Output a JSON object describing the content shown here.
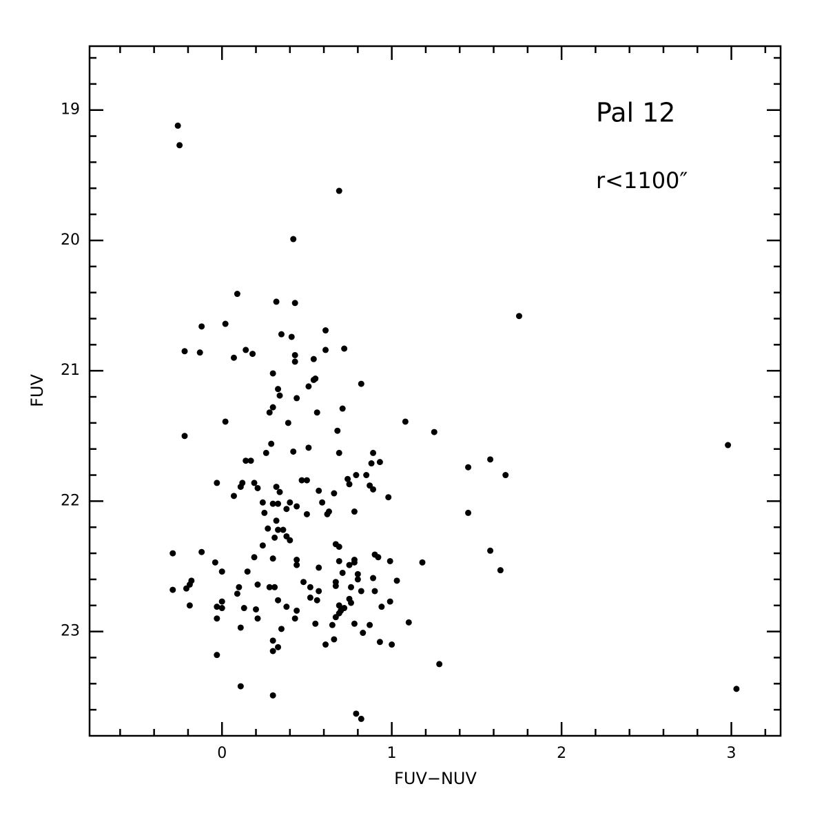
{
  "chart_data": {
    "type": "scatter",
    "title": "Pal 12",
    "annotation": "r<1100″",
    "x_label": "FUV−NUV",
    "y_label": "FUV",
    "color": "#000000",
    "y_inverted": true,
    "xlim": [
      -0.78,
      3.29
    ],
    "ylim": [
      18.51,
      23.8
    ],
    "xticks": [
      0,
      1,
      2,
      3
    ],
    "xminorticks": [
      -0.6,
      -0.4,
      -0.2,
      0.2,
      0.4,
      0.6,
      0.8,
      1.2,
      1.4,
      1.6,
      1.8,
      2.2,
      2.4,
      2.6,
      2.8,
      3.2
    ],
    "yticks": [
      19,
      20,
      21,
      22,
      23
    ],
    "yminorticks": [
      18.6,
      18.8,
      19.2,
      19.4,
      19.6,
      19.8,
      20.2,
      20.4,
      20.6,
      20.8,
      21.2,
      21.4,
      21.6,
      21.8,
      22.2,
      22.4,
      22.6,
      22.8,
      23.2,
      23.4,
      23.6
    ],
    "x": [
      -0.26,
      -0.25,
      0.69,
      0.42,
      1.75,
      0.09,
      0.32,
      0.43,
      -0.12,
      0.02,
      0.61,
      0.35,
      0.41,
      -0.22,
      -0.13,
      0.14,
      0.18,
      0.07,
      0.43,
      0.43,
      0.54,
      0.61,
      0.72,
      0.3,
      0.55,
      0.54,
      0.51,
      0.82,
      0.33,
      0.34,
      0.44,
      0.3,
      0.28,
      0.71,
      0.56,
      0.02,
      1.08,
      0.39,
      -0.22,
      1.25,
      0.68,
      0.29,
      2.98,
      0.51,
      0.26,
      0.42,
      0.69,
      0.89,
      0.14,
      0.17,
      0.93,
      1.58,
      0.88,
      1.45,
      1.67,
      0.74,
      0.79,
      0.85,
      0.47,
      0.5,
      -0.03,
      0.12,
      0.19,
      0.75,
      0.87,
      0.11,
      0.21,
      0.32,
      0.89,
      0.34,
      0.57,
      0.66,
      0.07,
      0.98,
      0.24,
      0.3,
      0.33,
      0.4,
      0.44,
      0.59,
      0.25,
      0.38,
      0.5,
      0.62,
      0.63,
      0.78,
      1.45,
      0.32,
      0.27,
      0.33,
      0.36,
      0.38,
      0.4,
      0.31,
      0.24,
      0.67,
      0.69,
      -0.29,
      -0.12,
      1.58,
      0.9,
      0.92,
      0.19,
      0.3,
      0.44,
      0.78,
      0.78,
      0.99,
      1.18,
      -0.04,
      0.69,
      0.75,
      0.44,
      0.57,
      1.64,
      0.71,
      0.0,
      0.15,
      0.8,
      0.8,
      0.89,
      -0.18,
      1.03,
      0.48,
      0.67,
      -0.19,
      0.21,
      0.67,
      0.52,
      0.31,
      0.28,
      0.76,
      0.1,
      0.82,
      -0.29,
      -0.21,
      0.57,
      0.09,
      0.9,
      0.52,
      0.56,
      0.75,
      0.33,
      0.99,
      0.0,
      0.76,
      -0.03,
      -0.19,
      0.0,
      0.69,
      0.38,
      0.94,
      0.7,
      0.13,
      0.2,
      0.44,
      0.72,
      0.69,
      0.67,
      -0.03,
      0.21,
      0.43,
      1.1,
      0.55,
      0.78,
      0.87,
      0.65,
      0.11,
      0.35,
      0.83,
      0.3,
      0.66,
      0.93,
      0.61,
      1.0,
      0.33,
      0.3,
      -0.03,
      1.28,
      0.11,
      3.03,
      0.3,
      0.79,
      0.82
    ],
    "values": [
      19.12,
      19.27,
      19.62,
      19.99,
      20.58,
      20.41,
      20.47,
      20.48,
      20.66,
      20.64,
      20.69,
      20.72,
      20.74,
      20.85,
      20.86,
      20.84,
      20.87,
      20.9,
      20.88,
      20.93,
      20.91,
      20.84,
      20.83,
      21.02,
      21.06,
      21.07,
      21.12,
      21.1,
      21.14,
      21.19,
      21.21,
      21.28,
      21.32,
      21.29,
      21.32,
      21.39,
      21.39,
      21.4,
      21.5,
      21.47,
      21.46,
      21.56,
      21.57,
      21.59,
      21.63,
      21.62,
      21.63,
      21.63,
      21.69,
      21.69,
      21.7,
      21.68,
      21.71,
      21.74,
      21.8,
      21.83,
      21.8,
      21.8,
      21.84,
      21.84,
      21.86,
      21.86,
      21.86,
      21.87,
      21.88,
      21.89,
      21.9,
      21.89,
      21.91,
      21.93,
      21.92,
      21.94,
      21.96,
      21.97,
      22.01,
      22.02,
      22.02,
      22.01,
      22.04,
      22.01,
      22.09,
      22.06,
      22.1,
      22.1,
      22.08,
      22.08,
      22.09,
      22.15,
      22.21,
      22.22,
      22.22,
      22.27,
      22.3,
      22.28,
      22.34,
      22.33,
      22.35,
      22.4,
      22.39,
      22.38,
      22.41,
      22.43,
      22.43,
      22.44,
      22.45,
      22.45,
      22.47,
      22.46,
      22.47,
      22.47,
      22.46,
      22.49,
      22.49,
      22.51,
      22.53,
      22.55,
      22.54,
      22.54,
      22.56,
      22.6,
      22.59,
      22.61,
      22.61,
      22.62,
      22.62,
      22.64,
      22.64,
      22.65,
      22.66,
      22.66,
      22.66,
      22.66,
      22.66,
      22.69,
      22.68,
      22.67,
      22.69,
      22.71,
      22.69,
      22.74,
      22.76,
      22.75,
      22.76,
      22.77,
      22.77,
      22.78,
      22.81,
      22.8,
      22.82,
      22.8,
      22.81,
      22.81,
      22.84,
      22.82,
      22.83,
      22.84,
      22.82,
      22.86,
      22.89,
      22.9,
      22.9,
      22.9,
      22.93,
      22.94,
      22.94,
      22.95,
      22.95,
      22.97,
      22.98,
      23.01,
      23.07,
      23.06,
      23.08,
      23.1,
      23.1,
      23.12,
      23.15,
      23.18,
      23.25,
      23.42,
      23.44,
      23.49,
      23.63,
      23.67
    ]
  }
}
